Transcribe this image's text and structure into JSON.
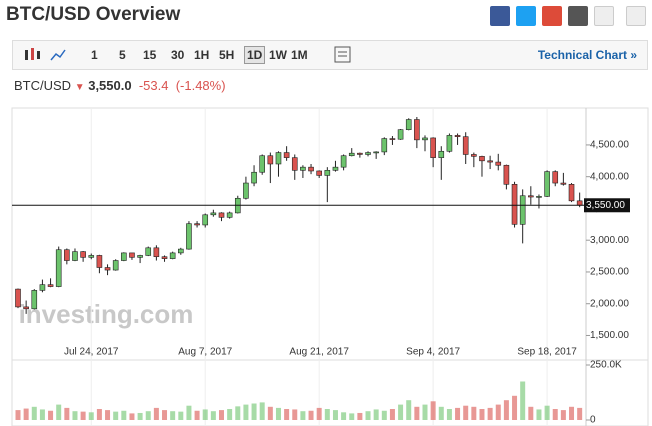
{
  "header": {
    "title": "BTC/USD Overview"
  },
  "toolbar": {
    "intervals": [
      "1",
      "5",
      "15",
      "30",
      "1H",
      "5H",
      "1D",
      "1W",
      "1M"
    ],
    "link": "Technical Chart »"
  },
  "quote": {
    "symbol": "BTC/USD",
    "price": "3,550.0",
    "change": "-53.4",
    "change_pct": "(-1.48%)"
  },
  "chart_data": {
    "type": "candlestick",
    "watermark": "investing.com",
    "categories": [
      null,
      null,
      null,
      null,
      null,
      null,
      null,
      null,
      null,
      "Jul 24, 2017",
      null,
      null,
      null,
      null,
      null,
      null,
      null,
      null,
      null,
      null,
      null,
      null,
      null,
      "Aug 7, 2017",
      null,
      null,
      null,
      null,
      null,
      null,
      null,
      null,
      null,
      null,
      null,
      null,
      null,
      "Aug 21, 2017",
      null,
      null,
      null,
      null,
      null,
      null,
      null,
      null,
      null,
      null,
      null,
      null,
      null,
      "Sep 4, 2017",
      null,
      null,
      null,
      null,
      null,
      null,
      null,
      null,
      null,
      null,
      null,
      null,
      null,
      "Sep 18, 2017",
      null,
      null,
      null,
      null
    ],
    "ohlc": [
      [
        2230,
        2240,
        1930,
        1950
      ],
      [
        1950,
        2050,
        1840,
        1920
      ],
      [
        1920,
        2230,
        1910,
        2210
      ],
      [
        2210,
        2380,
        2180,
        2300
      ],
      [
        2300,
        2400,
        2260,
        2270
      ],
      [
        2270,
        2900,
        2260,
        2850
      ],
      [
        2850,
        2870,
        2620,
        2680
      ],
      [
        2680,
        2870,
        2670,
        2820
      ],
      [
        2820,
        2830,
        2660,
        2730
      ],
      [
        2730,
        2790,
        2700,
        2760
      ],
      [
        2760,
        2770,
        2480,
        2570
      ],
      [
        2570,
        2620,
        2450,
        2530
      ],
      [
        2530,
        2700,
        2520,
        2680
      ],
      [
        2680,
        2810,
        2670,
        2800
      ],
      [
        2800,
        2800,
        2690,
        2730
      ],
      [
        2730,
        2770,
        2640,
        2760
      ],
      [
        2760,
        2900,
        2750,
        2880
      ],
      [
        2880,
        2920,
        2680,
        2740
      ],
      [
        2740,
        2760,
        2660,
        2710
      ],
      [
        2710,
        2820,
        2700,
        2800
      ],
      [
        2800,
        2880,
        2770,
        2860
      ],
      [
        2860,
        3300,
        2850,
        3260
      ],
      [
        3260,
        3300,
        3200,
        3240
      ],
      [
        3240,
        3420,
        3200,
        3400
      ],
      [
        3400,
        3480,
        3370,
        3430
      ],
      [
        3430,
        3440,
        3300,
        3360
      ],
      [
        3360,
        3450,
        3340,
        3430
      ],
      [
        3430,
        3700,
        3420,
        3660
      ],
      [
        3660,
        4000,
        3640,
        3900
      ],
      [
        3900,
        4180,
        3850,
        4070
      ],
      [
        4070,
        4350,
        4030,
        4330
      ],
      [
        4330,
        4380,
        3900,
        4200
      ],
      [
        4200,
        4400,
        4000,
        4380
      ],
      [
        4380,
        4480,
        4250,
        4300
      ],
      [
        4300,
        4350,
        3950,
        4100
      ],
      [
        4100,
        4180,
        3980,
        4150
      ],
      [
        4150,
        4200,
        4040,
        4090
      ],
      [
        4090,
        4100,
        3980,
        4020
      ],
      [
        4020,
        4150,
        3600,
        4100
      ],
      [
        4100,
        4250,
        4080,
        4150
      ],
      [
        4150,
        4350,
        4100,
        4330
      ],
      [
        4330,
        4450,
        4320,
        4370
      ],
      [
        4370,
        4380,
        4300,
        4350
      ],
      [
        4350,
        4400,
        4320,
        4380
      ],
      [
        4380,
        4400,
        4280,
        4390
      ],
      [
        4390,
        4620,
        4340,
        4600
      ],
      [
        4600,
        4640,
        4500,
        4590
      ],
      [
        4590,
        4750,
        4580,
        4740
      ],
      [
        4740,
        4920,
        4730,
        4900
      ],
      [
        4900,
        4940,
        4450,
        4580
      ],
      [
        4580,
        4650,
        4400,
        4610
      ],
      [
        4610,
        4620,
        4150,
        4300
      ],
      [
        4300,
        4480,
        3950,
        4400
      ],
      [
        4400,
        4680,
        4380,
        4650
      ],
      [
        4650,
        4680,
        4500,
        4630
      ],
      [
        4630,
        4700,
        4200,
        4350
      ],
      [
        4350,
        4380,
        4150,
        4320
      ],
      [
        4320,
        4330,
        4000,
        4250
      ],
      [
        4250,
        4330,
        4120,
        4230
      ],
      [
        4230,
        4360,
        4100,
        4180
      ],
      [
        4180,
        4190,
        3800,
        3880
      ],
      [
        3880,
        3920,
        3200,
        3250
      ],
      [
        3250,
        3800,
        2950,
        3700
      ],
      [
        3700,
        3850,
        3560,
        3680
      ],
      [
        3680,
        3720,
        3500,
        3690
      ],
      [
        3690,
        4100,
        3680,
        4080
      ],
      [
        4080,
        4100,
        3850,
        3900
      ],
      [
        3900,
        4060,
        3860,
        3880
      ],
      [
        3880,
        3900,
        3600,
        3620
      ],
      [
        3620,
        3750,
        3520,
        3550
      ]
    ],
    "up_color": "#6cc36c",
    "down_color": "#d9534f",
    "ylim": [
      1350,
      5050
    ],
    "yticks": [
      {
        "value": 1500,
        "label": "1,500.00"
      },
      {
        "value": 2000,
        "label": "2,000.00"
      },
      {
        "value": 2500,
        "label": "2,500.00"
      },
      {
        "value": 3000,
        "label": "3,000.00"
      },
      {
        "value": 3500,
        "label": "3,500.00"
      },
      {
        "value": 4000,
        "label": "4,000.00"
      },
      {
        "value": 4500,
        "label": "4,500.00"
      }
    ],
    "price_line": {
      "value": 3550,
      "label": "3,550.00"
    },
    "volume": [
      45000,
      52000,
      60000,
      48000,
      42000,
      70000,
      55000,
      40000,
      38000,
      35000,
      50000,
      45000,
      38000,
      42000,
      30000,
      32000,
      40000,
      55000,
      45000,
      40000,
      38000,
      65000,
      42000,
      48000,
      40000,
      45000,
      50000,
      62000,
      70000,
      75000,
      80000,
      60000,
      55000,
      50000,
      48000,
      40000,
      42000,
      55000,
      50000,
      45000,
      35000,
      30000,
      32000,
      40000,
      48000,
      42000,
      50000,
      70000,
      90000,
      60000,
      70000,
      85000,
      60000,
      50000,
      55000,
      65000,
      60000,
      50000,
      55000,
      70000,
      90000,
      110000,
      175000,
      60000,
      48000,
      65000,
      50000,
      45000,
      60000,
      55000
    ],
    "volume_ylim": [
      0,
      250000
    ],
    "volume_yticks": [
      0,
      {
        "value": 250000,
        "label": "250.0K"
      }
    ]
  }
}
